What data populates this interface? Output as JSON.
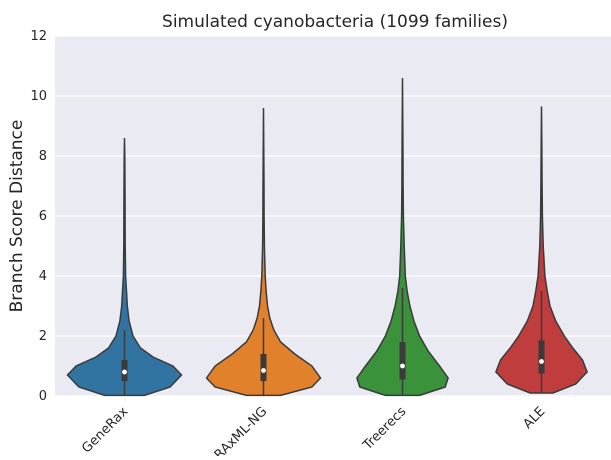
{
  "chart_data": {
    "type": "violin",
    "title": "Simulated cyanobacteria (1099 families)",
    "ylabel": "Branch Score Distance",
    "categories": [
      "GeneRax",
      "RAxML-NG",
      "Treerecs",
      "ALE"
    ],
    "ylim": [
      0,
      12
    ],
    "yticks": [
      0,
      2,
      4,
      6,
      8,
      10,
      12
    ],
    "grid": true,
    "series": [
      {
        "name": "GeneRax",
        "color": "#3274a1",
        "y": [
          0.02,
          0.3,
          0.7,
          1.0,
          1.3,
          1.6,
          2.0,
          2.5,
          3.0,
          3.5,
          4.0,
          5.0,
          6.0,
          7.0,
          8.0,
          8.6
        ],
        "density": [
          0.35,
          0.8,
          1.0,
          0.85,
          0.5,
          0.28,
          0.15,
          0.08,
          0.05,
          0.035,
          0.02,
          0.012,
          0.01,
          0.008,
          0.006,
          0
        ],
        "whisker_low": 0.02,
        "q1": 0.5,
        "median": 0.8,
        "q3": 1.2,
        "whisker_high": 2.2
      },
      {
        "name": "RAxML-NG",
        "color": "#e1812c",
        "y": [
          0.02,
          0.3,
          0.6,
          1.0,
          1.4,
          1.8,
          2.2,
          2.6,
          3.0,
          3.5,
          4.0,
          5.0,
          6.0,
          7.0,
          8.0,
          9.6
        ],
        "density": [
          0.3,
          0.85,
          1.0,
          0.85,
          0.55,
          0.3,
          0.18,
          0.11,
          0.07,
          0.045,
          0.03,
          0.015,
          0.01,
          0.008,
          0.006,
          0
        ],
        "whisker_low": 0.02,
        "q1": 0.5,
        "median": 0.85,
        "q3": 1.4,
        "whisker_high": 2.6
      },
      {
        "name": "Treerecs",
        "color": "#3a923a",
        "y": [
          0.02,
          0.3,
          0.6,
          1.0,
          1.5,
          2.0,
          2.5,
          3.0,
          3.5,
          4.0,
          5.0,
          6.0,
          7.0,
          8.0,
          9.0,
          10.6
        ],
        "density": [
          0.3,
          0.75,
          0.8,
          0.65,
          0.45,
          0.3,
          0.2,
          0.13,
          0.08,
          0.05,
          0.03,
          0.015,
          0.01,
          0.008,
          0.006,
          0
        ],
        "whisker_low": 0.02,
        "q1": 0.55,
        "median": 1.0,
        "q3": 1.8,
        "whisker_high": 3.6
      },
      {
        "name": "ALE",
        "color": "#c03d3e",
        "y": [
          0.1,
          0.4,
          0.8,
          1.2,
          1.6,
          2.0,
          2.5,
          3.0,
          3.5,
          4.0,
          5.0,
          6.0,
          7.0,
          8.0,
          9.65
        ],
        "density": [
          0.2,
          0.6,
          0.8,
          0.72,
          0.55,
          0.4,
          0.25,
          0.15,
          0.1,
          0.06,
          0.03,
          0.015,
          0.01,
          0.007,
          0
        ],
        "whisker_low": 0.1,
        "q1": 0.75,
        "median": 1.15,
        "q3": 1.85,
        "whisker_high": 3.5
      }
    ]
  }
}
